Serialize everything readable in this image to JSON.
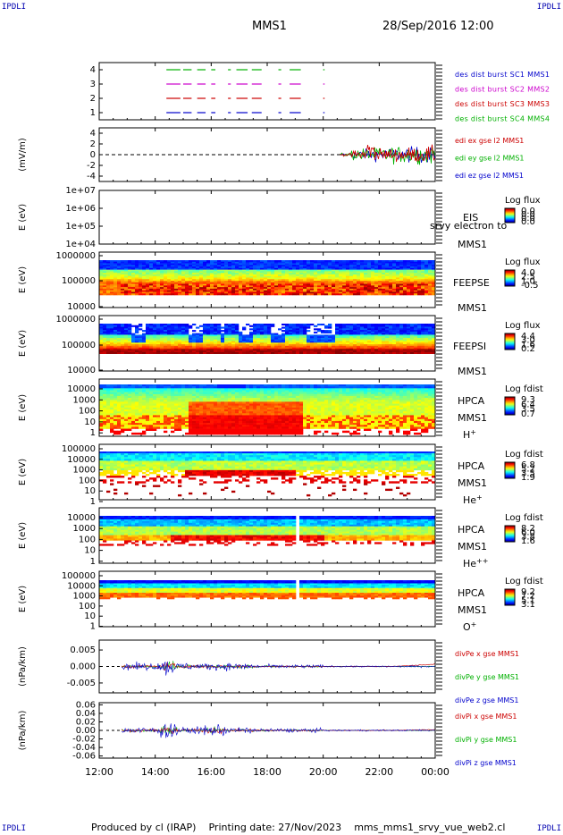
{
  "corners": {
    "tl": "IPDLI",
    "tr": "IPDLI",
    "bl": "IPDLI",
    "br": "IPDLI"
  },
  "header": {
    "spacecraft": "MMS1",
    "datetime": "28/Sep/2016 12:00"
  },
  "footer": {
    "produced": "Produced by cl (IRAP)",
    "printing": "Printing date: 27/Nov/2023",
    "file": "mms_mms1_srvy_vue_web2.cl"
  },
  "colors": {
    "red": "#cc0000",
    "green": "#00b000",
    "blue": "#0000cc",
    "magenta": "#cc00cc"
  },
  "x_axis": {
    "ticks": [
      "12:00",
      "14:00",
      "16:00",
      "18:00",
      "20:00",
      "22:00",
      "00:00"
    ],
    "range_hours": [
      12,
      24
    ]
  },
  "chart_data": [
    {
      "type": "line",
      "name": "burst",
      "ylim": [
        0.5,
        4.5
      ],
      "ytick_labels": [
        "4",
        "3",
        "2",
        "1"
      ],
      "ytick_values": [
        4,
        3,
        2,
        1
      ],
      "series": [
        {
          "name": "des dist burst SC1 MMS1",
          "color": "#0000cc",
          "level": 1
        },
        {
          "name": "des dist burst SC2 MMS2",
          "color": "#cc00cc",
          "level": 3
        },
        {
          "name": "des dist burst SC3 MMS3",
          "color": "#cc0000",
          "level": 2
        },
        {
          "name": "des dist burst SC4 MMS4",
          "color": "#00b000",
          "level": 4
        }
      ],
      "intervals_hours": [
        [
          14.4,
          14.9
        ],
        [
          15.0,
          15.3
        ],
        [
          15.5,
          15.8
        ],
        [
          16.0,
          16.15
        ],
        [
          16.6,
          16.7
        ],
        [
          16.9,
          17.3
        ],
        [
          17.45,
          17.8
        ],
        [
          18.4,
          18.5
        ],
        [
          18.8,
          19.2
        ],
        [
          20.0,
          20.05
        ]
      ]
    },
    {
      "type": "line",
      "name": "edi",
      "ylabel": "(mV/m)",
      "ylim": [
        -5,
        5
      ],
      "ytick_labels": [
        "4",
        "2",
        "0",
        "-2",
        "-4"
      ],
      "ytick_values": [
        4,
        2,
        0,
        -2,
        -4
      ],
      "series": [
        {
          "name": "edi ex gse l2 MMS1",
          "color": "#cc0000"
        },
        {
          "name": "edi ey gse l2 MMS1",
          "color": "#00b000"
        },
        {
          "name": "edi ez gse l2 MMS1",
          "color": "#0000cc"
        }
      ],
      "data_start_hour": 20.6
    },
    {
      "type": "heatmap",
      "name": "eis",
      "ylabel": "E (eV)",
      "ytick_labels": [
        "1e+07",
        "1e+06",
        "1e+05",
        "1e+04"
      ],
      "labels": [
        "EIS",
        "MMS1"
      ],
      "overlay": "srvy electron to",
      "colorbar": {
        "title": "Log flux",
        "ticks": [
          "0.0",
          "0.0",
          "0.0",
          "0.0"
        ]
      }
    },
    {
      "type": "heatmap",
      "name": "feepse",
      "ylabel": "E (eV)",
      "ytick_labels": [
        "1000000",
        "100000",
        "10000"
      ],
      "labels": [
        "FEEPSE",
        "MMS1"
      ],
      "colorbar": {
        "title": "Log flux",
        "ticks": [
          "4.0",
          "2.5",
          "1.0",
          "-0.5"
        ]
      }
    },
    {
      "type": "heatmap",
      "name": "feepsi",
      "ylabel": "E (eV)",
      "ytick_labels": [
        "1000000",
        "100000",
        "10000"
      ],
      "labels": [
        "FEEPSI",
        "MMS1"
      ],
      "colorbar": {
        "title": "Log flux",
        "ticks": [
          "4.4",
          "3.0",
          "1.6",
          "0.2"
        ]
      }
    },
    {
      "type": "heatmap",
      "name": "hpca-h",
      "ylabel": "E (eV)",
      "ytick_labels": [
        "10000",
        "1000",
        "100",
        "10",
        "1"
      ],
      "labels": [
        "HPCA",
        "MMS1"
      ],
      "species": "H",
      "species_sup": "+",
      "colorbar": {
        "title": "Log fdist",
        "ticks": [
          "9.3",
          "6.4",
          "3.5",
          "0.7"
        ]
      }
    },
    {
      "type": "heatmap",
      "name": "hpca-he",
      "ylabel": "E (eV)",
      "ytick_labels": [
        "100000",
        "10000",
        "1000",
        "100",
        "10",
        "1"
      ],
      "labels": [
        "HPCA",
        "MMS1"
      ],
      "species": "He",
      "species_sup": "+",
      "colorbar": {
        "title": "Log fdist",
        "ticks": [
          "6.8",
          "5.2",
          "3.5",
          "1.9"
        ]
      }
    },
    {
      "type": "heatmap",
      "name": "hpca-hepp",
      "ylabel": "E (eV)",
      "ytick_labels": [
        "10000",
        "1000",
        "100",
        "10",
        "1"
      ],
      "labels": [
        "HPCA",
        "MMS1"
      ],
      "species": "He",
      "species_sup": "++",
      "colorbar": {
        "title": "Log fdist",
        "ticks": [
          "8.2",
          "6.0",
          "3.8",
          "1.6"
        ]
      }
    },
    {
      "type": "heatmap",
      "name": "hpca-o",
      "ylabel": "E (eV)",
      "ytick_labels": [
        "100000",
        "10000",
        "1000",
        "100",
        "10",
        "1"
      ],
      "labels": [
        "HPCA",
        "MMS1"
      ],
      "species": "O",
      "species_sup": "+",
      "colorbar": {
        "title": "Log fdist",
        "ticks": [
          "9.2",
          "7.2",
          "5.1",
          "3.1"
        ]
      }
    },
    {
      "type": "line",
      "name": "divpe",
      "ylabel": "(nPa/km)",
      "ylim": [
        -0.008,
        0.008
      ],
      "ytick_labels": [
        "0.005",
        "0.000",
        "-0.005"
      ],
      "ytick_values": [
        0.005,
        0.0,
        -0.005
      ],
      "series": [
        {
          "name": "divPe x gse MMS1",
          "color": "#cc0000"
        },
        {
          "name": "divPe y gse MMS1",
          "color": "#00b000"
        },
        {
          "name": "divPe z gse MMS1",
          "color": "#0000cc"
        }
      ]
    },
    {
      "type": "line",
      "name": "divpi",
      "ylabel": "(nPa/km)",
      "ylim": [
        -0.065,
        0.065
      ],
      "ytick_labels": [
        "0.06",
        "0.04",
        "0.02",
        "0.00",
        "-0.02",
        "-0.04",
        "-0.06"
      ],
      "ytick_values": [
        0.06,
        0.04,
        0.02,
        0.0,
        -0.02,
        -0.04,
        -0.06
      ],
      "series": [
        {
          "name": "divPi x gse MMS1",
          "color": "#cc0000"
        },
        {
          "name": "divPi y gse MMS1",
          "color": "#00b000"
        },
        {
          "name": "divPi z gse MMS1",
          "color": "#0000cc"
        }
      ]
    }
  ]
}
